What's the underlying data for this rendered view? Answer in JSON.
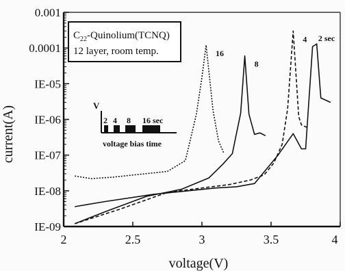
{
  "colors": {
    "ink": "#111111",
    "background": "#fbfbfb"
  },
  "chart_data": {
    "type": "line",
    "xlabel": "voltage(V)",
    "ylabel": "current(A)",
    "xlim": [
      2,
      4
    ],
    "ylim": [
      1e-09,
      0.001
    ],
    "yscale": "log",
    "x_ticks": [
      {
        "v": 2,
        "label": "2"
      },
      {
        "v": 2.5,
        "label": "2.5"
      },
      {
        "v": 3,
        "label": "3"
      },
      {
        "v": 3.5,
        "label": "3.5"
      },
      {
        "v": 4,
        "label": "4"
      }
    ],
    "y_ticks": [
      {
        "v": 0.001,
        "label": "0.001"
      },
      {
        "v": 0.0001,
        "label": "0.0001"
      },
      {
        "v": 1e-05,
        "label": "IE-05"
      },
      {
        "v": 1e-06,
        "label": "IE-06"
      },
      {
        "v": 1e-07,
        "label": "IE-07"
      },
      {
        "v": 1e-08,
        "label": "IE-08"
      },
      {
        "v": 1e-09,
        "label": "IE-09"
      }
    ],
    "grid": false,
    "legend_box": {
      "line1_prefix": "C",
      "line1_subscript": "22",
      "line1_suffix": "-Quinolium(TCNQ)",
      "line2": "12 layer,  room temp."
    },
    "inset": {
      "y_label": "V",
      "pulse_labels": [
        "2",
        "4",
        "8",
        "16 sec"
      ],
      "caption": "voltage  bias  time"
    },
    "series": [
      {
        "name": "16",
        "dash": "2,2",
        "x": [
          2.08,
          2.2,
          2.35,
          2.55,
          2.75,
          2.88,
          2.96,
          3.0,
          3.03,
          3.08,
          3.12,
          3.16
        ],
        "y": [
          2.6e-08,
          2.2e-08,
          2.4e-08,
          2.9e-08,
          3.5e-08,
          7e-08,
          1.4e-06,
          1.5e-05,
          0.00012,
          1.8e-06,
          2.5e-07,
          1.1e-07
        ]
      },
      {
        "name": "8",
        "dash": "",
        "x": [
          2.08,
          2.3,
          2.6,
          2.85,
          3.05,
          3.15,
          3.22,
          3.28,
          3.31,
          3.34,
          3.38,
          3.42,
          3.46
        ],
        "y": [
          1.2e-09,
          2.6e-09,
          7e-09,
          1.1e-08,
          2.3e-08,
          5.5e-08,
          1.1e-07,
          1.5e-06,
          6e-05,
          1.4e-06,
          3.8e-07,
          4.2e-07,
          3.5e-07
        ]
      },
      {
        "name": "4",
        "dash": "5,3",
        "x": [
          2.08,
          2.4,
          2.75,
          3.0,
          3.2,
          3.35,
          3.45,
          3.52,
          3.58,
          3.62,
          3.66,
          3.7,
          3.72,
          3.76
        ],
        "y": [
          1.2e-09,
          3e-09,
          9e-09,
          1.2e-08,
          1.5e-08,
          2e-08,
          2.8e-08,
          6e-08,
          2e-07,
          2e-06,
          0.0003,
          1.2e-06,
          7e-07,
          6e-07
        ]
      },
      {
        "name": "2 sec",
        "dash": "",
        "x": [
          2.08,
          2.3,
          2.65,
          2.9,
          3.1,
          3.25,
          3.38,
          3.55,
          3.66,
          3.72,
          3.75,
          3.8,
          3.83,
          3.86,
          3.93
        ],
        "y": [
          3.6e-09,
          5e-09,
          8e-09,
          1e-08,
          1.2e-08,
          1.3e-08,
          1.6e-08,
          1e-07,
          4e-07,
          1.5e-07,
          1.5e-07,
          0.00011,
          0.00013,
          4e-06,
          3e-06
        ]
      }
    ]
  }
}
